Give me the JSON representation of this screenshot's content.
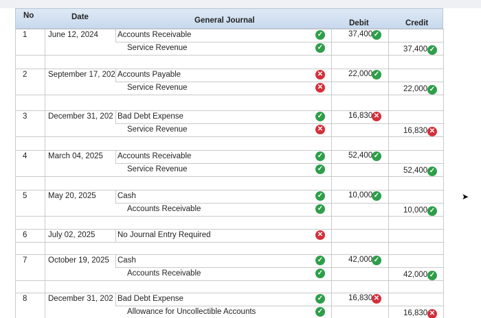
{
  "header": {
    "no": "No",
    "date": "Date",
    "journal": "General Journal",
    "debit": "Debit",
    "credit": "Credit"
  },
  "entries": [
    {
      "no": "1",
      "date": "June 12, 2024",
      "lines": [
        {
          "account": "Accounts Receivable",
          "ok": true,
          "debit": "37,400",
          "debit_ok": true
        },
        {
          "account": "Service Revenue",
          "ok": true,
          "credit": "37,400",
          "credit_ok": true
        }
      ]
    },
    {
      "no": "2",
      "date": "September 17, 202",
      "lines": [
        {
          "account": "Accounts Payable",
          "ok": false,
          "debit": "22,000",
          "debit_ok": true
        },
        {
          "account": "Service Revenue",
          "ok": false,
          "credit": "22,000",
          "credit_ok": true
        }
      ]
    },
    {
      "no": "3",
      "date": "December 31, 202",
      "lines": [
        {
          "account": "Bad Debt Expense",
          "ok": true,
          "debit": "16,830",
          "debit_ok": false
        },
        {
          "account": "Service Revenue",
          "ok": false,
          "credit": "16,830",
          "credit_ok": false
        }
      ]
    },
    {
      "no": "4",
      "date": "March 04, 2025",
      "lines": [
        {
          "account": "Accounts Receivable",
          "ok": true,
          "debit": "52,400",
          "debit_ok": true
        },
        {
          "account": "Service Revenue",
          "ok": true,
          "credit": "52,400",
          "credit_ok": true
        }
      ]
    },
    {
      "no": "5",
      "date": "May 20, 2025",
      "lines": [
        {
          "account": "Cash",
          "ok": true,
          "debit": "10,000",
          "debit_ok": true
        },
        {
          "account": "Accounts Receivable",
          "ok": true,
          "credit": "10,000",
          "credit_ok": true
        }
      ]
    },
    {
      "no": "6",
      "date": "July 02, 2025",
      "lines": [
        {
          "account": "No Journal Entry Required",
          "ok": false
        }
      ]
    },
    {
      "no": "7",
      "date": "October 19, 2025",
      "lines": [
        {
          "account": "Cash",
          "ok": true,
          "debit": "42,000",
          "debit_ok": true
        },
        {
          "account": "Accounts Receivable",
          "ok": true,
          "credit": "42,000",
          "credit_ok": true
        }
      ]
    },
    {
      "no": "8",
      "date": "December 31, 202",
      "lines": [
        {
          "account": "Bad Debt Expense",
          "ok": true,
          "debit": "16,830",
          "debit_ok": false
        },
        {
          "account": "Allowance for Uncollectible Accounts",
          "ok": true,
          "credit": "16,830",
          "credit_ok": false
        }
      ]
    }
  ]
}
